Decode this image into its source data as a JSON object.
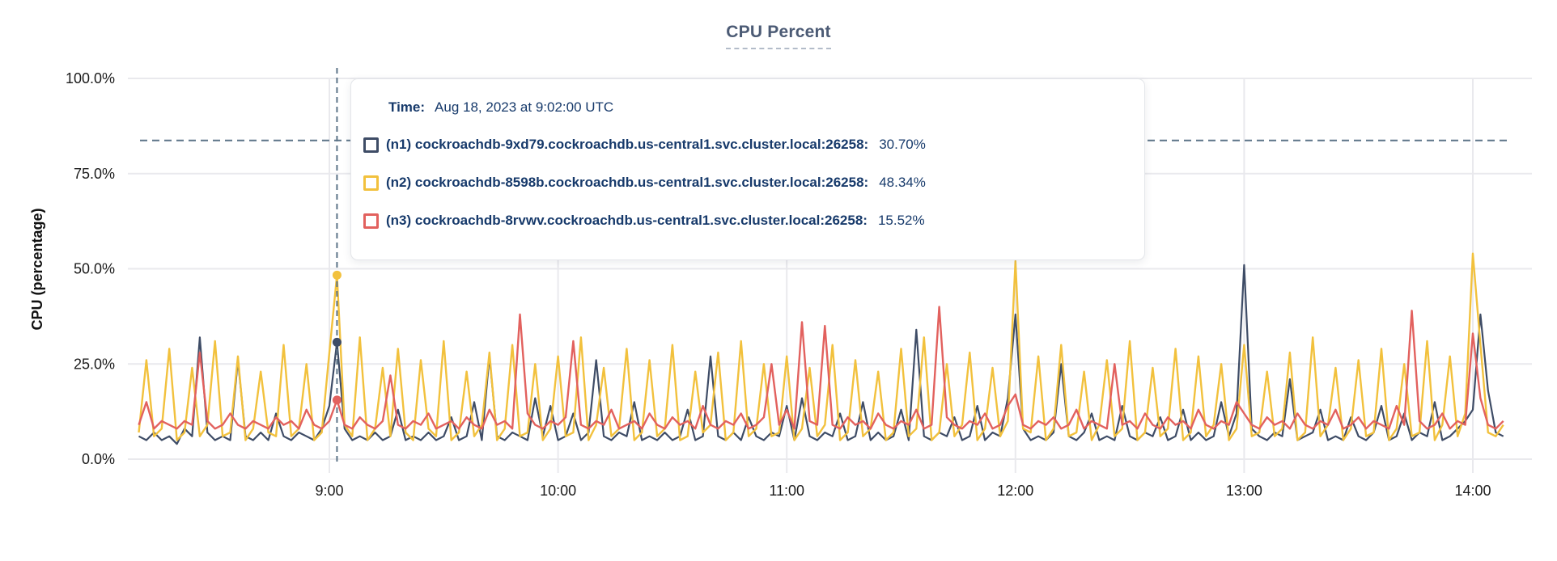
{
  "title": "CPU Percent",
  "tooltip": {
    "time_label": "Time:",
    "time_value": "Aug 18, 2023 at 9:02:00 UTC",
    "rows": [
      {
        "label": "(n1) cockroachdb-9xd79.cockroachdb.us-central1.svc.cluster.local:26258:",
        "value": "30.70%"
      },
      {
        "label": "(n2) cockroachdb-8598b.cockroachdb.us-central1.svc.cluster.local:26258:",
        "value": "48.34%"
      },
      {
        "label": "(n3) cockroachdb-8rvwv.cockroachdb.us-central1.svc.cluster.local:26258:",
        "value": "15.52%"
      }
    ]
  },
  "colors": {
    "grid": "#e9e9ed",
    "dashed_guide": "#5d7488",
    "axis_text": "#1b1b1b",
    "title_text": "#4c5b75",
    "tooltip_text": "#173a6b"
  },
  "chart_data": {
    "type": "line",
    "title": "CPU Percent",
    "xlabel": "",
    "ylabel": "CPU (percentage)",
    "ylim": [
      0,
      100
    ],
    "y_ticks": [
      {
        "pct": 0,
        "label": "0.0%"
      },
      {
        "pct": 25,
        "label": "25.0%"
      },
      {
        "pct": 50,
        "label": "50.0%"
      },
      {
        "pct": 75,
        "label": "75.0%"
      },
      {
        "pct": 100,
        "label": "100.0%"
      }
    ],
    "x_ticks": [
      {
        "minute": 540,
        "label": "9:00"
      },
      {
        "minute": 600,
        "label": "10:00"
      },
      {
        "minute": 660,
        "label": "11:00"
      },
      {
        "minute": 720,
        "label": "12:00"
      },
      {
        "minute": 780,
        "label": "13:00"
      },
      {
        "minute": 840,
        "label": "14:00"
      }
    ],
    "x_start_minute": 490,
    "x_step_minutes": 2,
    "threshold_pct": 83.7,
    "hover": {
      "minute": 542,
      "time": "9:02",
      "values": [
        30.7,
        48.34,
        15.52
      ]
    },
    "series": [
      {
        "name": "(n1) cockroachdb-9xd79.cockroachdb.us-central1.svc.cluster.local:26258",
        "color": "#3e4c66",
        "values": [
          6,
          5,
          7,
          5,
          6,
          4,
          8,
          6,
          32,
          7,
          5,
          6,
          5,
          26,
          6,
          5,
          7,
          5,
          12,
          6,
          5,
          7,
          6,
          5,
          8,
          14,
          30.7,
          8,
          5,
          6,
          5,
          7,
          5,
          6,
          13,
          5,
          6,
          5,
          7,
          5,
          6,
          11,
          5,
          6,
          15,
          5,
          27,
          6,
          5,
          7,
          6,
          5,
          16,
          6,
          14,
          5,
          6,
          12,
          5,
          7,
          26,
          6,
          5,
          7,
          6,
          15,
          5,
          6,
          5,
          7,
          5,
          6,
          13,
          5,
          6,
          27,
          6,
          5,
          7,
          5,
          11,
          6,
          5,
          7,
          6,
          14,
          5,
          16,
          6,
          5,
          7,
          6,
          12,
          5,
          6,
          15,
          5,
          7,
          5,
          6,
          13,
          5,
          34,
          6,
          5,
          7,
          6,
          11,
          5,
          6,
          14,
          5,
          7,
          6,
          16,
          38,
          8,
          5,
          6,
          5,
          7,
          25,
          6,
          5,
          7,
          12,
          5,
          6,
          5,
          14,
          6,
          5,
          7,
          6,
          11,
          5,
          6,
          13,
          5,
          7,
          5,
          6,
          15,
          6,
          12,
          51,
          8,
          6,
          5,
          7,
          6,
          21,
          5,
          6,
          7,
          13,
          5,
          6,
          5,
          11,
          6,
          5,
          7,
          14,
          5,
          6,
          12,
          5,
          7,
          6,
          15,
          5,
          6,
          8,
          10,
          13,
          38,
          18,
          7,
          6
        ]
      },
      {
        "name": "(n2) cockroachdb-8598b.cockroachdb.us-central1.svc.cluster.local:26258",
        "color": "#f2c13d",
        "values": [
          7,
          26,
          6,
          8,
          29,
          5,
          7,
          24,
          6,
          9,
          31,
          6,
          7,
          27,
          5,
          8,
          23,
          7,
          6,
          30,
          6,
          8,
          25,
          5,
          7,
          28,
          48.34,
          9,
          6,
          32,
          5,
          8,
          24,
          6,
          29,
          7,
          5,
          26,
          8,
          6,
          31,
          5,
          7,
          23,
          6,
          9,
          28,
          5,
          8,
          30,
          6,
          7,
          25,
          5,
          8,
          27,
          6,
          7,
          32,
          5,
          9,
          24,
          6,
          8,
          29,
          5,
          7,
          26,
          6,
          8,
          30,
          5,
          6,
          23,
          7,
          9,
          28,
          5,
          7,
          31,
          6,
          8,
          25,
          6,
          7,
          27,
          5,
          8,
          24,
          6,
          9,
          30,
          5,
          7,
          26,
          6,
          8,
          23,
          5,
          7,
          29,
          6,
          8,
          32,
          5,
          7,
          25,
          6,
          9,
          28,
          5,
          8,
          24,
          6,
          10,
          52,
          8,
          7,
          27,
          5,
          8,
          30,
          6,
          7,
          23,
          5,
          9,
          26,
          6,
          8,
          31,
          5,
          7,
          24,
          6,
          8,
          29,
          5,
          7,
          27,
          6,
          9,
          25,
          5,
          8,
          30,
          6,
          7,
          23,
          6,
          8,
          28,
          5,
          7,
          32,
          6,
          9,
          24,
          5,
          8,
          26,
          6,
          7,
          29,
          5,
          8,
          25,
          6,
          7,
          31,
          5,
          9,
          27,
          6,
          12,
          54,
          30,
          7,
          6,
          9
        ]
      },
      {
        "name": "(n3) cockroachdb-8rvwv.cockroachdb.us-central1.svc.cluster.local:26258",
        "color": "#e2615e",
        "values": [
          9,
          15,
          8,
          10,
          9,
          8,
          10,
          9,
          28,
          10,
          8,
          9,
          12,
          9,
          8,
          10,
          9,
          8,
          11,
          9,
          10,
          8,
          13,
          9,
          8,
          10,
          15.52,
          9,
          8,
          11,
          9,
          8,
          10,
          22,
          9,
          8,
          10,
          9,
          12,
          8,
          9,
          10,
          8,
          11,
          9,
          8,
          13,
          9,
          10,
          8,
          38,
          12,
          9,
          8,
          10,
          9,
          11,
          31,
          9,
          8,
          10,
          9,
          13,
          8,
          9,
          10,
          8,
          12,
          9,
          8,
          11,
          9,
          10,
          8,
          14,
          9,
          8,
          10,
          9,
          12,
          8,
          9,
          11,
          25,
          9,
          13,
          8,
          36,
          10,
          9,
          35,
          9,
          8,
          11,
          9,
          10,
          8,
          12,
          9,
          8,
          10,
          9,
          13,
          8,
          9,
          40,
          11,
          9,
          8,
          10,
          9,
          12,
          8,
          9,
          14,
          17,
          9,
          8,
          10,
          9,
          11,
          8,
          9,
          13,
          8,
          10,
          9,
          8,
          25,
          9,
          10,
          8,
          12,
          9,
          8,
          11,
          9,
          10,
          8,
          13,
          9,
          8,
          10,
          9,
          15,
          12,
          9,
          8,
          11,
          9,
          10,
          8,
          12,
          9,
          8,
          10,
          9,
          13,
          8,
          9,
          11,
          8,
          10,
          9,
          8,
          14,
          9,
          39,
          10,
          8,
          9,
          12,
          8,
          10,
          9,
          33,
          16,
          9,
          8,
          10
        ]
      }
    ]
  }
}
